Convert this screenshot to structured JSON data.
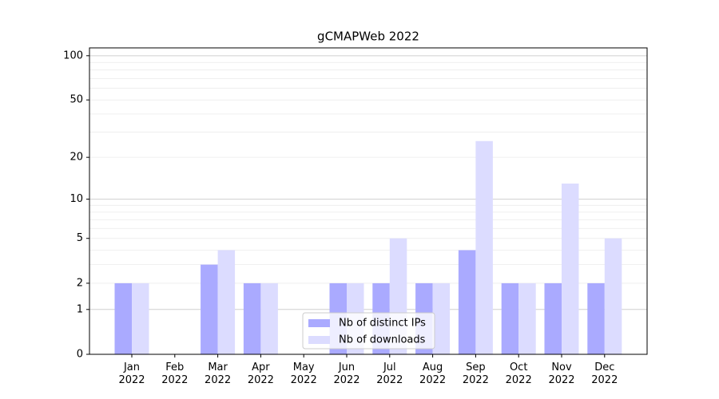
{
  "chart_data": {
    "type": "bar",
    "title": "gCMAPWeb 2022",
    "categories": [
      "Jan\n2022",
      "Feb\n2022",
      "Mar\n2022",
      "Apr\n2022",
      "May\n2022",
      "Jun\n2022",
      "Jul\n2022",
      "Aug\n2022",
      "Sep\n2022",
      "Oct\n2022",
      "Nov\n2022",
      "Dec\n2022"
    ],
    "series": [
      {
        "name": "Nb of distinct IPs",
        "color": "#aaaaff",
        "values": [
          2,
          0,
          3,
          2,
          0,
          2,
          2,
          2,
          4,
          2,
          2,
          2
        ]
      },
      {
        "name": "Nb of downloads",
        "color": "#dcdcff",
        "values": [
          2,
          0,
          4,
          2,
          0,
          2,
          5,
          2,
          26,
          2,
          13,
          5
        ]
      }
    ],
    "y_scale": "log1p",
    "ylim": [
      0,
      113
    ],
    "yticks": [
      0,
      1,
      2,
      5,
      10,
      20,
      50,
      100
    ],
    "ymajor_grid": [
      1,
      10,
      100
    ],
    "yminor_grid": [
      2,
      3,
      4,
      5,
      6,
      7,
      8,
      9,
      20,
      30,
      40,
      50,
      60,
      70,
      80,
      90
    ],
    "grid": true,
    "legend": "lower center"
  }
}
